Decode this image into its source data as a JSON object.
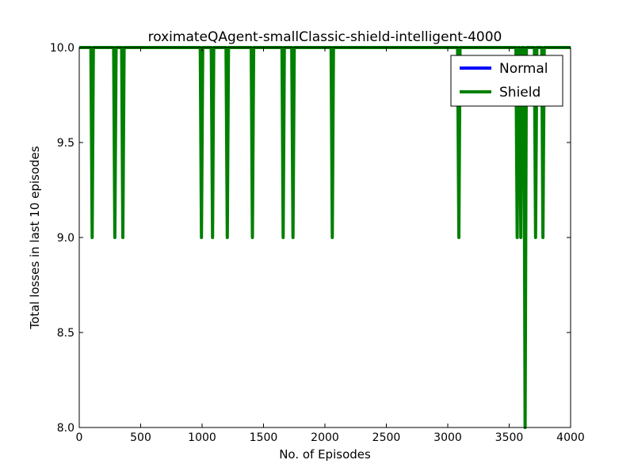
{
  "chart_data": {
    "type": "line",
    "title": "roximateQAgent-smallClassic-shield-intelligent-4000",
    "xlabel": "No. of Episodes",
    "ylabel": "Total losses in last 10 episodes",
    "xlim": [
      0,
      4000
    ],
    "ylim": [
      8.0,
      10.0
    ],
    "xticks": [
      "0",
      "500",
      "1000",
      "1500",
      "2000",
      "2500",
      "3000",
      "3500",
      "4000"
    ],
    "yticks": [
      "8.0",
      "8.5",
      "9.0",
      "9.5",
      "10.0"
    ],
    "grid": false,
    "legend_position": "top-right",
    "series": [
      {
        "name": "Normal",
        "color": "#0000ff",
        "x": [],
        "y": []
      },
      {
        "name": "Shield",
        "color": "#008000",
        "x": [
          0,
          95,
          105,
          115,
          280,
          290,
          300,
          345,
          355,
          365,
          985,
          995,
          1005,
          1075,
          1085,
          1095,
          1195,
          1205,
          1215,
          1400,
          1410,
          1420,
          1650,
          1660,
          1670,
          1730,
          1740,
          1750,
          2050,
          2060,
          2070,
          3080,
          3090,
          3100,
          3555,
          3565,
          3575,
          3585,
          3595,
          3605,
          3620,
          3630,
          3640,
          3705,
          3715,
          3725,
          3765,
          3775,
          3785,
          4000
        ],
        "y": [
          10,
          10,
          9,
          10,
          10,
          9,
          10,
          10,
          9,
          10,
          10,
          9,
          10,
          10,
          9,
          10,
          10,
          9,
          10,
          10,
          9,
          10,
          10,
          9,
          10,
          10,
          9,
          10,
          10,
          9,
          10,
          10,
          9,
          10,
          10,
          9,
          10,
          10,
          9,
          10,
          10,
          8,
          10,
          10,
          9,
          10,
          10,
          9,
          10,
          10
        ]
      }
    ]
  }
}
